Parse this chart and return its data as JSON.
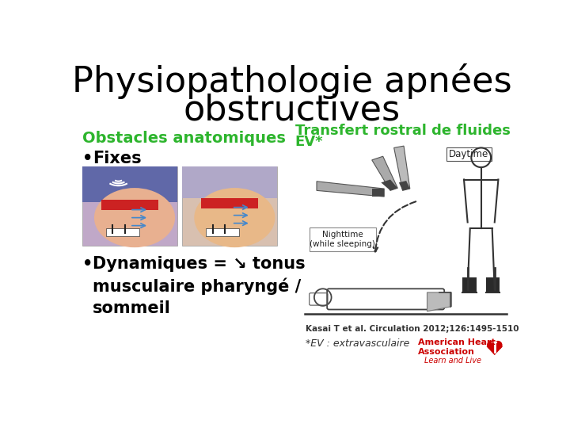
{
  "title_line1": "Physiopathologie apnées",
  "title_line2": "obstructives",
  "title_fontsize": 32,
  "title_color": "#000000",
  "subtitle_transfert": "Transfert rostral de fluides",
  "subtitle_ev": "EV*",
  "subtitle_color": "#2db52d",
  "subtitle_fontsize": 13,
  "col1_header": "Obstacles anatomiques",
  "col1_header_color": "#2db52d",
  "col1_header_fontsize": 14,
  "bullet1": "Fixes",
  "bullet1_fontsize": 15,
  "bullet2_text": "Dynamiques = ↘ tonus\nmusculaire pharyngé /\nsommeil",
  "bullet2_fontsize": 15,
  "reference": "Kasai T et al. Circulation 2012;126:1495-1510",
  "footnote": "*EV : extravasculaire",
  "aha_line1": "American Heart",
  "aha_line2": "Association",
  "aha_line3": "Learn and Live",
  "daytime_label": "Daytime",
  "nighttime_label": "Nighttime\n(while sleeping)",
  "background_color": "#ffffff"
}
